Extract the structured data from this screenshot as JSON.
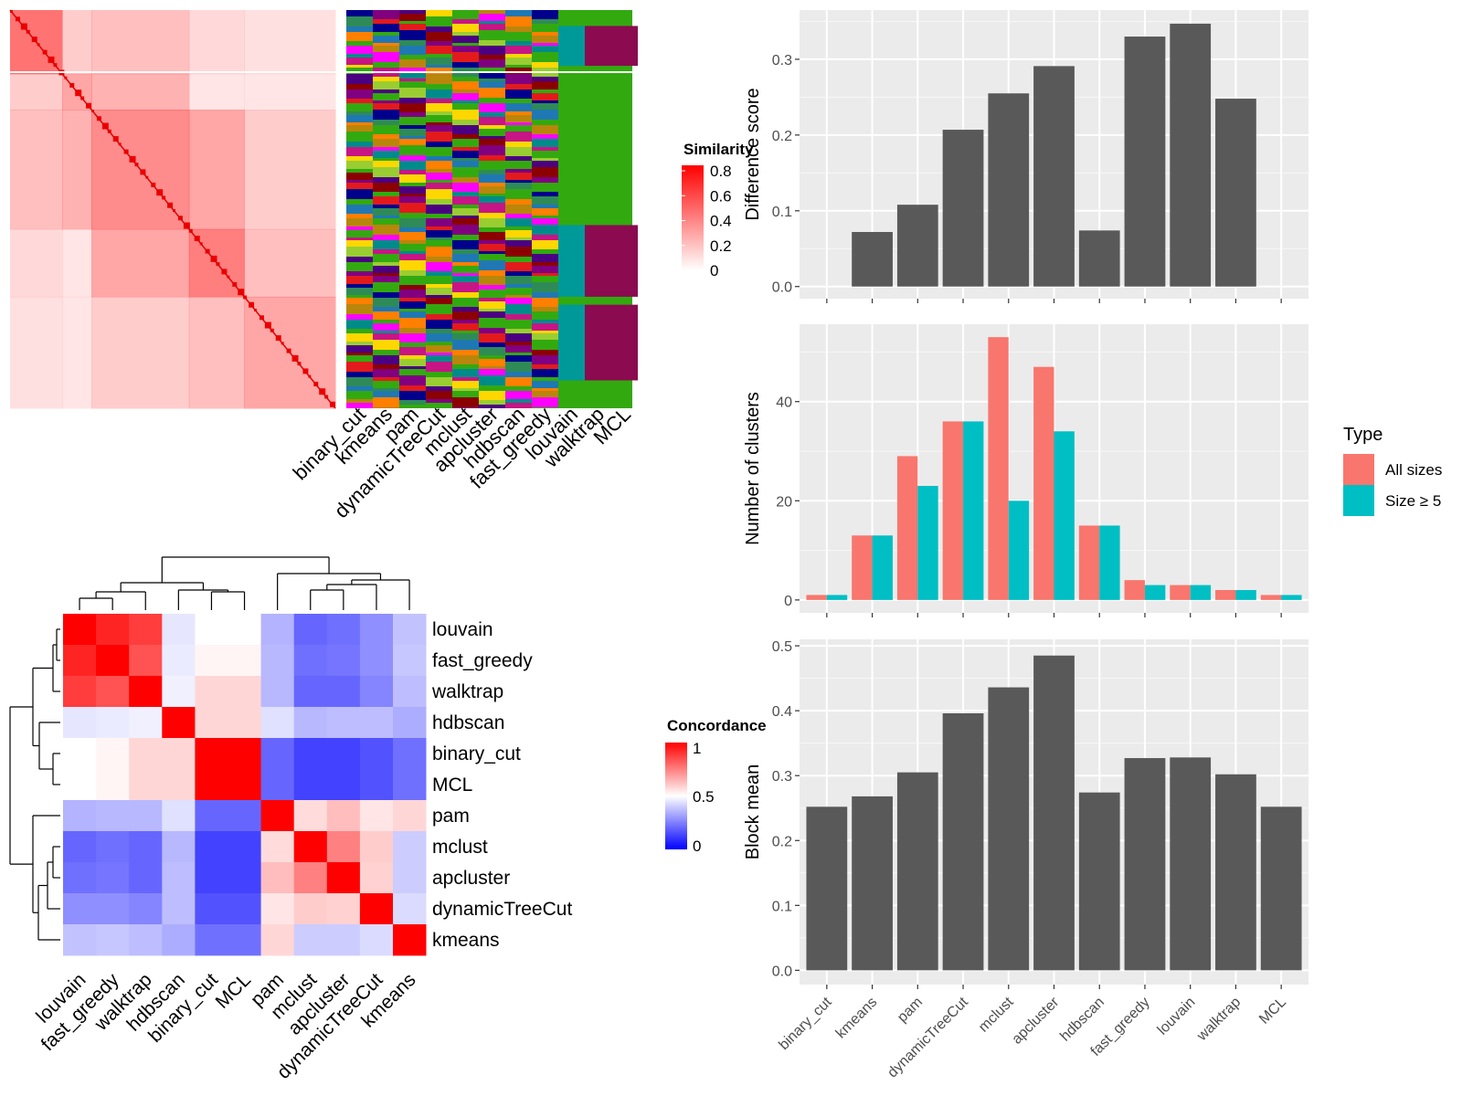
{
  "methods": [
    "binary_cut",
    "kmeans",
    "pam",
    "dynamicTreeCut",
    "mclust",
    "apcluster",
    "hdbscan",
    "fast_greedy",
    "louvain",
    "walktrap",
    "MCL"
  ],
  "similarity_heatmap": {
    "legend_title": "Similarity",
    "legend_ticks": [
      "0.8",
      "0.6",
      "0.4",
      "0.2",
      "0"
    ],
    "colors": {
      "low": "#ffffff",
      "high": "#ff0000"
    }
  },
  "annotation_panel": {
    "background_color": "#33a910"
  },
  "concordance_heatmap": {
    "legend_title": "Concordance",
    "legend_ticks": [
      "1",
      "0.5",
      "0"
    ],
    "colors": {
      "low": "#0000ff",
      "mid": "#ffffff",
      "high": "#ff0000"
    },
    "order": [
      "louvain",
      "fast_greedy",
      "walktrap",
      "hdbscan",
      "binary_cut",
      "MCL",
      "pam",
      "mclust",
      "apcluster",
      "dynamicTreeCut",
      "kmeans"
    ]
  },
  "chart_data": [
    {
      "type": "bar",
      "categories": [
        "binary_cut",
        "kmeans",
        "pam",
        "dynamicTreeCut",
        "mclust",
        "apcluster",
        "hdbscan",
        "fast_greedy",
        "louvain",
        "walktrap",
        "MCL"
      ],
      "values": [
        0,
        0.072,
        0.108,
        0.207,
        0.255,
        0.291,
        0.074,
        0.33,
        0.347,
        0.248,
        0
      ],
      "ylabel": "Difference score",
      "ylim": [
        -0.016,
        0.365
      ],
      "yticks": [
        "0.0",
        "0.1",
        "0.2",
        "0.3"
      ],
      "bar_color": "#595959",
      "background": "#ebebeb"
    },
    {
      "type": "bar",
      "categories": [
        "binary_cut",
        "kmeans",
        "pam",
        "dynamicTreeCut",
        "mclust",
        "apcluster",
        "hdbscan",
        "fast_greedy",
        "louvain",
        "walktrap",
        "MCL"
      ],
      "series": [
        {
          "name": "All sizes",
          "values": [
            1,
            13,
            29,
            36,
            53,
            47,
            15,
            4,
            3,
            2,
            1
          ],
          "color": "#f8766d"
        },
        {
          "name": "Size ≥ 5",
          "values": [
            1,
            13,
            23,
            36,
            20,
            34,
            15,
            3,
            3,
            2,
            1
          ],
          "color": "#00bfc4"
        }
      ],
      "ylabel": "Number of clusters",
      "ylim": [
        -2.6,
        55.6
      ],
      "yticks": [
        "0",
        "20",
        "40"
      ],
      "legend": {
        "title": "Type",
        "position": "right"
      },
      "background": "#ebebeb"
    },
    {
      "type": "bar",
      "categories": [
        "binary_cut",
        "kmeans",
        "pam",
        "dynamicTreeCut",
        "mclust",
        "apcluster",
        "hdbscan",
        "fast_greedy",
        "louvain",
        "walktrap",
        "MCL"
      ],
      "values": [
        0.252,
        0.268,
        0.305,
        0.396,
        0.436,
        0.485,
        0.274,
        0.327,
        0.328,
        0.302,
        0.252
      ],
      "ylabel": "Block mean",
      "ylim": [
        -0.022,
        0.51
      ],
      "yticks": [
        "0.0",
        "0.1",
        "0.2",
        "0.3",
        "0.4",
        "0.5"
      ],
      "bar_color": "#595959",
      "background": "#ebebeb"
    }
  ]
}
